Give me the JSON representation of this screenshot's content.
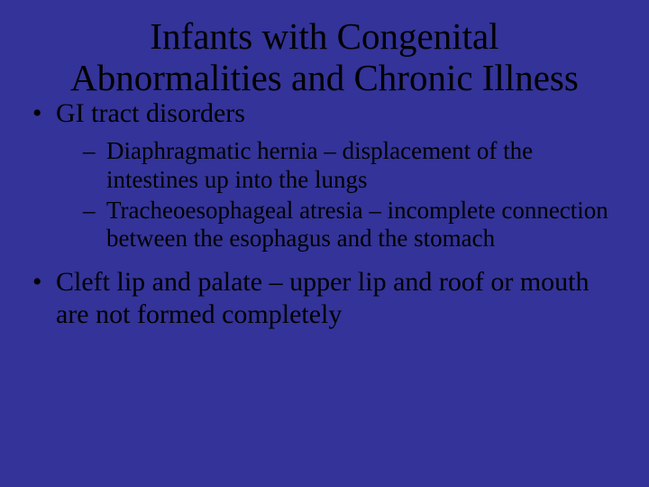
{
  "slide": {
    "background_color": "#333399",
    "text_color": "#000000",
    "font_family": "Times New Roman",
    "title": "Infants with Congenital Abnormalities and Chronic Illness",
    "title_fontsize": 41,
    "bullets": [
      {
        "text": "GI tract disorders",
        "fontsize": 30,
        "sub": [
          {
            "text": "Diaphragmatic hernia – displacement of the intestines up into the lungs",
            "fontsize": 27
          },
          {
            "text": "Tracheoesophageal atresia – incomplete connection between the esophagus and the stomach",
            "fontsize": 27
          }
        ]
      },
      {
        "text": "Cleft lip and palate – upper lip and roof or mouth are not formed completely",
        "fontsize": 30,
        "sub": []
      }
    ]
  }
}
